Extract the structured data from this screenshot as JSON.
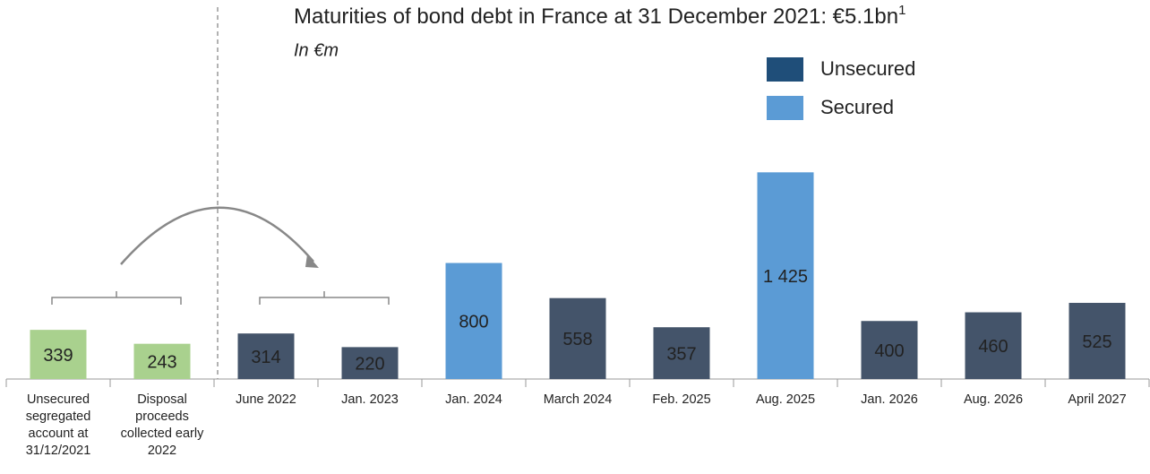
{
  "chart_data": {
    "type": "bar",
    "title": "Maturities of bond debt in France at 31 December 2021: €5.1bn",
    "title_note": "1",
    "subtitle": "In €m",
    "categories": [
      "Unsecured segregated account at 31/12/2021",
      "Disposal proceeds collected early 2022",
      "June 2022",
      "Jan. 2023",
      "Jan. 2024",
      "March 2024",
      "Feb. 2025",
      "Aug. 2025",
      "Jan. 2026",
      "Aug. 2026",
      "April 2027"
    ],
    "values": [
      339,
      243,
      314,
      220,
      800,
      558,
      357,
      1425,
      400,
      460,
      525
    ],
    "value_labels": [
      "339",
      "243",
      "314",
      "220",
      "800",
      "558",
      "357",
      "1 425",
      "400",
      "460",
      "525"
    ],
    "colors": [
      "#a9d18e",
      "#a9d18e",
      "#44546a",
      "#44546a",
      "#5b9bd5",
      "#44546a",
      "#44546a",
      "#5b9bd5",
      "#44546a",
      "#44546a",
      "#44546a"
    ],
    "legend": [
      {
        "name": "Unsecured",
        "color": "#1f4e79"
      },
      {
        "name": "Secured",
        "color": "#5b9bd5"
      }
    ],
    "ylim": [
      0,
      1600
    ]
  }
}
